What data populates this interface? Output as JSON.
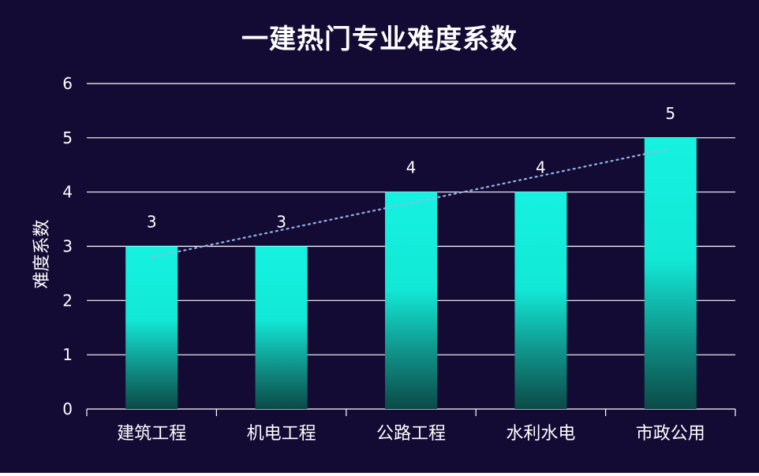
{
  "chart_data": {
    "type": "bar",
    "title": "一建热门专业难度系数",
    "ylabel": "难度系数",
    "xlabel": "",
    "categories": [
      "建筑工程",
      "机电工程",
      "公路工程",
      "水利水电",
      "市政公用"
    ],
    "values": [
      3,
      3,
      4,
      4,
      5
    ],
    "data_labels": [
      "3",
      "3",
      "4",
      "4",
      "5"
    ],
    "ylim": [
      0,
      6
    ],
    "yticks": [
      "0",
      "1",
      "2",
      "3",
      "4",
      "5",
      "6"
    ],
    "grid": true,
    "trendline": "linear, dotted",
    "colors": {
      "background": "#140b35",
      "bar_top": "#16f2e0",
      "bar_bottom": "#0b4a47",
      "grid": "#ffffff",
      "trendline": "#8fb7e6",
      "text": "#ffffff"
    }
  }
}
